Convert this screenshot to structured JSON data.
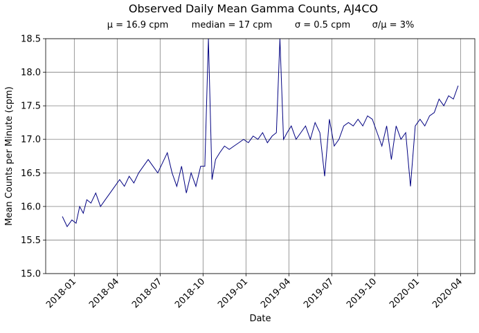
{
  "chart_data": {
    "type": "line",
    "title": "Observed Daily Mean Gamma Counts, AJ4CO",
    "stats": [
      "μ = 16.9 cpm",
      "median = 17 cpm",
      "σ = 0.5 cpm",
      "σ/μ = 3%"
    ],
    "x_label": "Date",
    "y_label": "Mean Counts per Minute (cpm)",
    "color": "#000080",
    "grid": true,
    "xlim": [
      "2017-11",
      "2020-05"
    ],
    "xticks": [
      "2018-01",
      "2018-04",
      "2018-07",
      "2018-10",
      "2019-01",
      "2019-04",
      "2019-07",
      "2019-10",
      "2020-01",
      "2020-04"
    ],
    "ylim": [
      15,
      18.5
    ],
    "yticks": [
      {
        "value": 15,
        "label": "15.0"
      },
      15.5,
      {
        "value": 16,
        "label": "16.0"
      },
      16.5,
      {
        "value": 17,
        "label": "17.0"
      },
      17.5,
      {
        "value": 18,
        "label": "18.0"
      },
      18.5
    ],
    "x": [
      "2017-12",
      "2017-12",
      "2017-12",
      "2018-01",
      "2018-01",
      "2018-01",
      "2018-01",
      "2018-02",
      "2018-02",
      "2018-02",
      "2018-03",
      "2018-03",
      "2018-03",
      "2018-04",
      "2018-04",
      "2018-04",
      "2018-05",
      "2018-05",
      "2018-05",
      "2018-06",
      "2018-06",
      "2018-06",
      "2018-07",
      "2018-07",
      "2018-07",
      "2018-08",
      "2018-08",
      "2018-08",
      "2018-09",
      "2018-09",
      "2018-09",
      "2018-10",
      "2018-10",
      "2018-10",
      "2018-10",
      "2018-11",
      "2018-11",
      "2018-11",
      "2018-12",
      "2018-12",
      "2018-12",
      "2019-01",
      "2019-01",
      "2019-01",
      "2019-02",
      "2019-02",
      "2019-02",
      "2019-03",
      "2019-03",
      "2019-03",
      "2019-03",
      "2019-04",
      "2019-04",
      "2019-04",
      "2019-05",
      "2019-05",
      "2019-05",
      "2019-06",
      "2019-06",
      "2019-06",
      "2019-07",
      "2019-07",
      "2019-07",
      "2019-08",
      "2019-08",
      "2019-08",
      "2019-09",
      "2019-09",
      "2019-09",
      "2019-10",
      "2019-10",
      "2019-10",
      "2019-11",
      "2019-11",
      "2019-11",
      "2019-12",
      "2019-12",
      "2019-12",
      "2020-01",
      "2020-01",
      "2020-01",
      "2020-02",
      "2020-02",
      "2020-02",
      "2020-03",
      "2020-03",
      "2020-03"
    ],
    "values": [
      15.85,
      15.7,
      15.8,
      15.75,
      16.0,
      15.9,
      16.1,
      16.05,
      16.2,
      16.0,
      16.1,
      16.2,
      16.3,
      16.4,
      16.3,
      16.45,
      16.35,
      16.5,
      16.6,
      16.7,
      16.6,
      16.5,
      16.65,
      16.8,
      16.5,
      16.3,
      16.6,
      16.2,
      16.5,
      16.3,
      16.6,
      16.6,
      18.5,
      16.4,
      16.7,
      16.8,
      16.9,
      16.85,
      16.9,
      16.95,
      17.0,
      16.95,
      17.05,
      17.0,
      17.1,
      16.95,
      17.05,
      17.1,
      18.5,
      17.0,
      17.1,
      17.2,
      17.0,
      17.1,
      17.2,
      17.0,
      17.25,
      17.1,
      16.45,
      17.3,
      16.9,
      17.0,
      17.2,
      17.25,
      17.2,
      17.3,
      17.2,
      17.35,
      17.3,
      17.1,
      16.9,
      17.2,
      16.7,
      17.2,
      17.0,
      17.1,
      16.3,
      17.2,
      17.3,
      17.2,
      17.35,
      17.4,
      17.6,
      17.5,
      17.65,
      17.6,
      17.8
    ]
  }
}
